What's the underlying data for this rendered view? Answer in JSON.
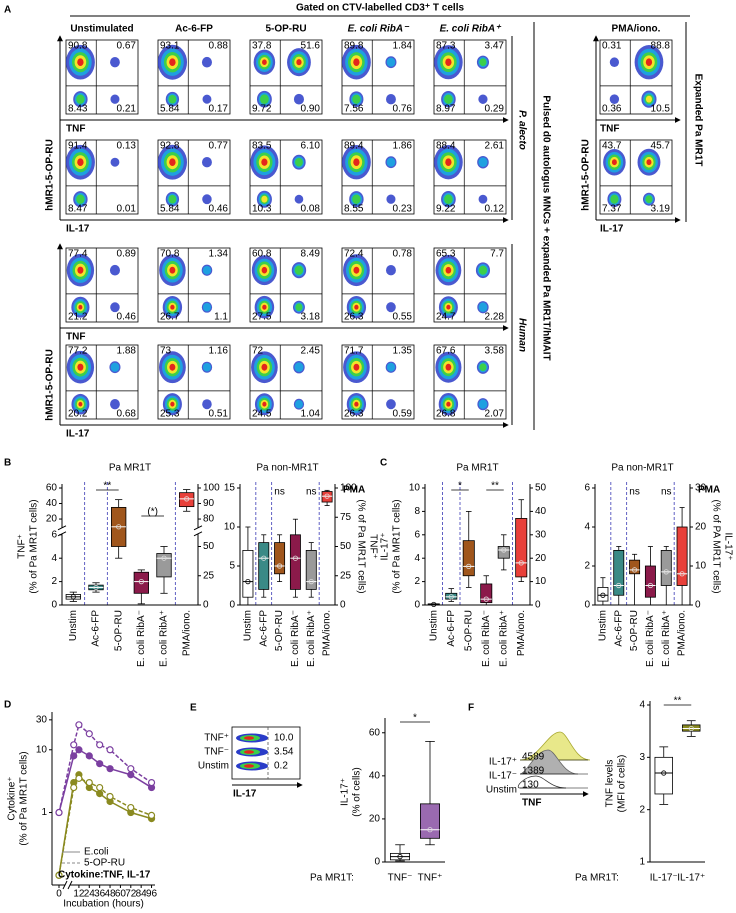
{
  "panel_a": {
    "label": "A",
    "header": "Gated on CTV-labelled CD3⁺ T cells",
    "columns": [
      "Unstimulated",
      "Ac-6-FP",
      "5-OP-RU",
      "E. coli RibA⁻",
      "E. coli RibA⁺"
    ],
    "pma_title": "PMA/iono.",
    "ylabel": "hMR1-5-OP-RU",
    "species": [
      "P. alecto",
      "Human"
    ],
    "side_label": "Pulsed d0 autologus MNCs + expanded Pa MR1T/hMAIT",
    "pma_side_label": "Expanded Pa MR1T",
    "rows": [
      {
        "xlabel": "TNF",
        "plots": [
          [
            "90.8",
            "0.67",
            "8.43",
            "0.21"
          ],
          [
            "93.1",
            "0.88",
            "5.84",
            "0.17"
          ],
          [
            "37.8",
            "51.6",
            "9.72",
            "0.90"
          ],
          [
            "89.8",
            "1.84",
            "7.56",
            "0.76"
          ],
          [
            "87.3",
            "3.47",
            "8.97",
            "0.29"
          ],
          [
            "0.31",
            "88.8",
            "0.36",
            "10.5"
          ]
        ]
      },
      {
        "xlabel": "IL-17",
        "plots": [
          [
            "91.4",
            "0.13",
            "8.47",
            "0.01"
          ],
          [
            "92.8",
            "0.77",
            "5.84",
            "0.46"
          ],
          [
            "83.5",
            "6.10",
            "10.3",
            "0.08"
          ],
          [
            "89.4",
            "1.86",
            "8.55",
            "0.23"
          ],
          [
            "88.4",
            "2.61",
            "9.22",
            "0.12"
          ],
          [
            "43.7",
            "45.7",
            "7.37",
            "3.19"
          ]
        ]
      },
      {
        "xlabel": "TNF",
        "plots": [
          [
            "77.4",
            "0.89",
            "21.2",
            "0.46"
          ],
          [
            "70.8",
            "1.34",
            "26.7",
            "1.1"
          ],
          [
            "60.8",
            "8.49",
            "27.5",
            "3.18"
          ],
          [
            "72.4",
            "0.78",
            "26.3",
            "0.55"
          ],
          [
            "65.3",
            "7.7",
            "24.7",
            "2.28"
          ]
        ]
      },
      {
        "xlabel": "IL-17",
        "plots": [
          [
            "77.2",
            "1.88",
            "20.2",
            "0.68"
          ],
          [
            "73",
            "1.16",
            "25.3",
            "0.51"
          ],
          [
            "72",
            "2.45",
            "24.5",
            "1.04"
          ],
          [
            "71.7",
            "1.35",
            "26.3",
            "0.59"
          ],
          [
            "67.6",
            "3.58",
            "26.8",
            "2.07"
          ]
        ]
      }
    ]
  },
  "panel_b": {
    "label": "B",
    "plots": [
      {
        "type": "box",
        "title": "Pa MR1T",
        "categories": [
          "Unstim",
          "Ac-6-FP",
          "5-OP-RU",
          "E. coli RibA⁻",
          "E. coli RibA⁺",
          "PMA/iono."
        ],
        "ylim": [
          [
            0,
            6
          ],
          [
            10,
            60
          ]
        ],
        "yticks": [
          0,
          2,
          4,
          6,
          20,
          40,
          60
        ],
        "y2lim": [
          [
            0,
            60
          ],
          [
            75,
            100
          ]
        ],
        "y2ticks": [
          0,
          25,
          50,
          80,
          90,
          100
        ],
        "ylabel": [
          "TNF⁺",
          "(% of Pa MR1T cells)"
        ],
        "boxes": [
          {
            "values": [
              0.3,
              0.5,
              0.7,
              0.9,
              1.1
            ],
            "color": "#ffffff"
          },
          {
            "values": [
              1.1,
              1.3,
              1.5,
              1.7,
              1.9
            ],
            "color": "#3a8a86"
          },
          {
            "values": [
              4,
              5,
              10,
              35,
              45
            ],
            "color": "#a0561c"
          },
          {
            "values": [
              0.1,
              1,
              2,
              2.8,
              3
            ],
            "color": "#8b1a4a"
          },
          {
            "values": [
              1,
              2.4,
              4,
              4.4,
              5
            ],
            "color": "#9a9a9a"
          },
          {
            "values": [
              85,
              88,
              93,
              97,
              99
            ],
            "color": "#e8403a",
            "axis": "y2"
          }
        ],
        "annotations": [
          "**",
          "(*)"
        ]
      },
      {
        "type": "box",
        "title": "Pa non-MR1T",
        "categories": [
          "Unstim",
          "Ac-6-FP",
          "5-OP-RU",
          "E. coli RibA⁻",
          "E. coli RibA⁺",
          "PMA/iono."
        ],
        "ylim": [
          0,
          15
        ],
        "yticks": [
          0,
          5,
          10,
          15
        ],
        "y2lim": [
          0,
          100
        ],
        "y2ticks": [
          0,
          25,
          50,
          75,
          100
        ],
        "y2label": [
          "TNF⁺",
          "(% of Pa MR1T cells)"
        ],
        "pma_label": "PMA",
        "boxes": [
          {
            "values": [
              0,
              1,
              3,
              7,
              10
            ],
            "color": "#ffffff"
          },
          {
            "values": [
              1,
              2,
              6,
              8,
              9
            ],
            "color": "#3a8a86"
          },
          {
            "values": [
              3,
              4,
              5,
              8,
              9
            ],
            "color": "#a0561c"
          },
          {
            "values": [
              1,
              2,
              6,
              9,
              11
            ],
            "color": "#8b1a4a"
          },
          {
            "values": [
              1,
              2,
              3,
              7,
              8
            ],
            "color": "#9a9a9a"
          },
          {
            "values": [
              85,
              88,
              93,
              97,
              98
            ],
            "color": "#e8403a",
            "axis": "y2"
          }
        ],
        "annotations": [
          "ns",
          "ns"
        ]
      }
    ]
  },
  "panel_c": {
    "label": "C",
    "plots": [
      {
        "type": "box",
        "title": "Pa MR1T",
        "categories": [
          "Unstim",
          "Ac-6-FP",
          "5-OP-RU",
          "E. coli RibA⁻",
          "E. coli RibA⁺",
          "PMA/iono."
        ],
        "ylim": [
          0,
          10
        ],
        "yticks": [
          0,
          2,
          4,
          6,
          8,
          10
        ],
        "y2lim": [
          0,
          50
        ],
        "y2ticks": [
          0,
          10,
          20,
          30,
          40,
          50
        ],
        "ylabel": [
          "IL-17⁺",
          "(% of Pa MR1T cells)"
        ],
        "boxes": [
          {
            "values": [
              0,
              0,
              0.05,
              0.1,
              0.1
            ],
            "color": "#ffffff"
          },
          {
            "values": [
              0.3,
              0.5,
              0.7,
              1,
              1.4
            ],
            "color": "#3a8a86"
          },
          {
            "values": [
              1.5,
              2.5,
              3.3,
              5.5,
              8
            ],
            "color": "#a0561c"
          },
          {
            "values": [
              0,
              0.2,
              0.5,
              1.8,
              2.5
            ],
            "color": "#8b1a4a"
          },
          {
            "values": [
              3,
              4,
              4.7,
              5,
              6
            ],
            "color": "#9a9a9a"
          },
          {
            "values": [
              10,
              12,
              18,
              37,
              45
            ],
            "color": "#e8403a",
            "axis": "y2"
          }
        ],
        "annotations": [
          "*",
          "**"
        ]
      },
      {
        "type": "box",
        "title": "Pa non-MR1T",
        "categories": [
          "Unstim",
          "Ac-6-FP",
          "5-OP-RU",
          "E. coli RibA⁻",
          "E. coli RibA⁺",
          "PMA/iono."
        ],
        "ylim": [
          0,
          6
        ],
        "yticks": [
          0,
          2,
          4,
          6
        ],
        "y2lim": [
          0,
          30
        ],
        "y2ticks": [
          0,
          10,
          20,
          30
        ],
        "y2label": [
          "IL-17⁺",
          "(% of PA MR1T cells)"
        ],
        "pma_label": "PMA",
        "boxes": [
          {
            "values": [
              0,
              0.2,
              0.5,
              0.9,
              1.4
            ],
            "color": "#ffffff"
          },
          {
            "values": [
              0,
              0.5,
              1,
              2.8,
              3
            ],
            "color": "#3a8a86"
          },
          {
            "values": [
              0,
              1.6,
              1.8,
              2.3,
              2.6
            ],
            "color": "#a0561c"
          },
          {
            "values": [
              0,
              0.4,
              1,
              2,
              3
            ],
            "color": "#8b1a4a"
          },
          {
            "values": [
              0,
              1,
              1.7,
              2.8,
              3
            ],
            "color": "#9a9a9a"
          },
          {
            "values": [
              0,
              5,
              8,
              20,
              25
            ],
            "color": "#e8403a",
            "axis": "y2"
          }
        ],
        "annotations": [
          "ns",
          "ns"
        ]
      }
    ]
  },
  "panel_d": {
    "label": "D",
    "type": "line",
    "ylabel": [
      "Cytokine⁺",
      "(% of Pa MR1T cells)"
    ],
    "xlabel": "Incubation (hours)",
    "log_y": true,
    "xlim": [
      [
        -2,
        2
      ],
      [
        4,
        100
      ]
    ],
    "xticks": [
      0,
      12,
      24,
      36,
      48,
      60,
      72,
      84,
      96
    ],
    "ylim": [
      0.07,
      40
    ],
    "yticks": [
      1,
      10,
      30
    ],
    "x": [
      0,
      6,
      12,
      24,
      36,
      48,
      72,
      96
    ],
    "series": [
      {
        "values": [
          1,
          8,
          10,
          8,
          6,
          5,
          4,
          2.5
        ],
        "color": "#7b3fa0",
        "dash": false,
        "filled": true
      },
      {
        "values": [
          1,
          12,
          25,
          18,
          12,
          10,
          5,
          3
        ],
        "color": "#7b3fa0",
        "dash": true,
        "filled": false
      },
      {
        "values": [
          0.1,
          3,
          4,
          2.5,
          2,
          1.5,
          1,
          0.8
        ],
        "color": "#8a8a20",
        "dash": false,
        "filled": true
      },
      {
        "values": [
          0.1,
          2.5,
          3.5,
          3,
          2.5,
          1.8,
          1.2,
          0.9
        ],
        "color": "#8a8a20",
        "dash": true,
        "filled": false
      }
    ],
    "legend": [
      {
        "text": "E.coli",
        "dash": false
      },
      {
        "text": "5-OP-RU",
        "dash": true
      }
    ],
    "cytokine_label": "Cytokine:",
    "cytokines": [
      {
        "text": "TNF,",
        "color": "#7b3fa0"
      },
      {
        "text": "IL-17",
        "color": "#8a8a20"
      }
    ]
  },
  "panel_e": {
    "label": "E",
    "histogram": {
      "labels": [
        "TNF⁺",
        "TNF⁻",
        "Unstim"
      ],
      "values": [
        "10.0",
        "3.54",
        "0.2"
      ],
      "xlabel": "IL-17"
    },
    "plot": {
      "type": "box",
      "categories": [
        "TNF⁻",
        "TNF⁺"
      ],
      "xprefix": "Pa MR1T:",
      "ylim": [
        0,
        65
      ],
      "yticks": [
        0,
        20,
        40,
        60
      ],
      "ylabel": [
        "IL-17⁺",
        "(% of cells)"
      ],
      "boxes": [
        {
          "values": [
            0.5,
            1,
            2.5,
            4,
            8
          ],
          "color": "#ffffff"
        },
        {
          "values": [
            8,
            11,
            15,
            27,
            56
          ],
          "color": "#9a6ab0"
        }
      ],
      "annotations": [
        "*"
      ]
    }
  },
  "panel_f": {
    "label": "F",
    "histogram": {
      "labels": [
        "IL-17⁺",
        "IL-17⁻",
        "Unstim"
      ],
      "values": [
        "4589",
        "1389",
        "130"
      ],
      "xlabel": "TNF"
    },
    "plot": {
      "type": "box",
      "categories": [
        "IL-17⁻",
        "IL-17⁺"
      ],
      "xprefix": "Pa MR1T:",
      "ylim": [
        1,
        4
      ],
      "yticks": [
        1,
        2,
        3,
        4
      ],
      "ylabel": [
        "TNF levels",
        "(MFI of cells)"
      ],
      "boxes": [
        {
          "values": [
            2.1,
            2.3,
            2.7,
            3.0,
            3.2
          ],
          "color": "#ffffff"
        },
        {
          "values": [
            3.4,
            3.5,
            3.55,
            3.62,
            3.7
          ],
          "color": "#8a8a20"
        }
      ],
      "annotations": [
        "**"
      ]
    }
  }
}
